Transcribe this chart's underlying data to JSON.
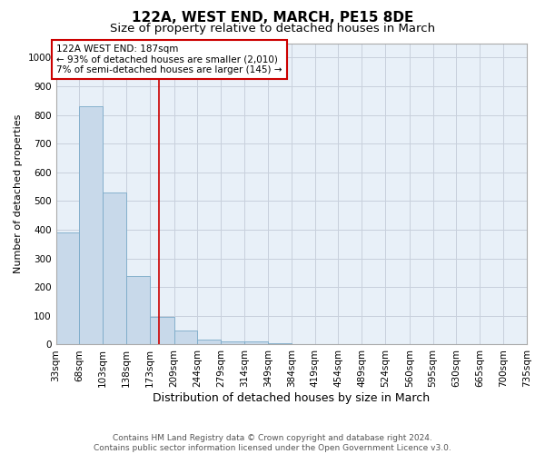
{
  "title": "122A, WEST END, MARCH, PE15 8DE",
  "subtitle": "Size of property relative to detached houses in March",
  "xlabel": "Distribution of detached houses by size in March",
  "ylabel": "Number of detached properties",
  "bar_color": "#c8d9ea",
  "bar_edge_color": "#7aaac8",
  "grid_color": "#c8d0dc",
  "bg_color": "#e8f0f8",
  "vline_x": 187,
  "vline_color": "#cc0000",
  "annotation_text": "122A WEST END: 187sqm\n← 93% of detached houses are smaller (2,010)\n7% of semi-detached houses are larger (145) →",
  "annotation_box_color": "#cc0000",
  "bin_edges": [
    33,
    68,
    103,
    138,
    173,
    209,
    244,
    279,
    314,
    349,
    384,
    419,
    454,
    489,
    524,
    560,
    595,
    630,
    665,
    700,
    735
  ],
  "bar_heights": [
    390,
    830,
    530,
    240,
    95,
    50,
    18,
    12,
    10,
    5,
    0,
    0,
    0,
    0,
    0,
    0,
    0,
    0,
    0,
    0
  ],
  "ylim": [
    0,
    1050
  ],
  "yticks": [
    0,
    100,
    200,
    300,
    400,
    500,
    600,
    700,
    800,
    900,
    1000
  ],
  "footer_text": "Contains HM Land Registry data © Crown copyright and database right 2024.\nContains public sector information licensed under the Open Government Licence v3.0.",
  "title_fontsize": 11,
  "subtitle_fontsize": 9.5,
  "xlabel_fontsize": 9,
  "ylabel_fontsize": 8,
  "tick_fontsize": 7.5,
  "annotation_fontsize": 7.5,
  "footer_fontsize": 6.5
}
